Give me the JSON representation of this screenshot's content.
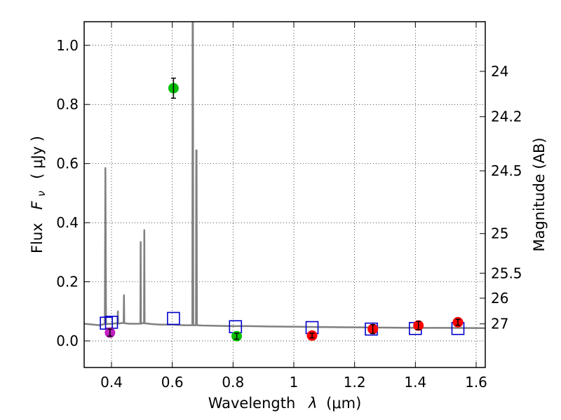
{
  "chart_data": {
    "type": "scatter",
    "title": "",
    "xlabel_text": "Wavelength",
    "xlabel_symbol": "λ",
    "xlabel_unit": "(μm)",
    "ylabel_text": "Flux",
    "ylabel_symbol": "F",
    "ylabel_sub": "ν",
    "ylabel_unit": "( μJy )",
    "y2label": "Magnitude (AB)",
    "xlim": [
      0.31,
      1.63
    ],
    "ylim": [
      -0.09,
      1.08
    ],
    "grid": true,
    "x_ticks": [
      0.4,
      0.6,
      0.8,
      1.0,
      1.2,
      1.4,
      1.6
    ],
    "x_tick_labels": [
      "0.4",
      "0.6",
      "0.8",
      "1",
      "1.2",
      "1.4",
      "1.6"
    ],
    "y_ticks": [
      0.0,
      0.2,
      0.4,
      0.6,
      0.8,
      1.0
    ],
    "y_tick_labels": [
      "0.0",
      "0.2",
      "0.4",
      "0.6",
      "0.8",
      "1.0"
    ],
    "y2_ticks": [
      24,
      24.2,
      24.5,
      25,
      25.5,
      26,
      27
    ],
    "y2_tick_labels": [
      "24",
      "24.2",
      "24.5",
      "25",
      "25.5",
      "26",
      "27"
    ],
    "colors": {
      "model": "#808080",
      "model_points": "#0000cc",
      "green": "#00c000",
      "magenta": "#c020c0",
      "red": "#ff0000",
      "errorbar": "#000000"
    },
    "model_spectrum": [
      [
        0.31,
        0.058
      ],
      [
        0.36,
        0.053
      ],
      [
        0.378,
        0.057
      ],
      [
        0.38,
        0.585
      ],
      [
        0.382,
        0.057
      ],
      [
        0.4,
        0.058
      ],
      [
        0.42,
        0.06
      ],
      [
        0.421,
        0.1
      ],
      [
        0.422,
        0.058
      ],
      [
        0.43,
        0.06
      ],
      [
        0.44,
        0.061
      ],
      [
        0.441,
        0.155
      ],
      [
        0.442,
        0.06
      ],
      [
        0.46,
        0.058
      ],
      [
        0.48,
        0.058
      ],
      [
        0.495,
        0.058
      ],
      [
        0.496,
        0.335
      ],
      [
        0.497,
        0.058
      ],
      [
        0.5,
        0.06
      ],
      [
        0.507,
        0.06
      ],
      [
        0.508,
        0.375
      ],
      [
        0.509,
        0.06
      ],
      [
        0.53,
        0.057
      ],
      [
        0.56,
        0.055
      ],
      [
        0.6,
        0.055
      ],
      [
        0.64,
        0.053
      ],
      [
        0.666,
        0.053
      ],
      [
        0.667,
        1.08
      ],
      [
        0.668,
        1.08
      ],
      [
        0.669,
        0.053
      ],
      [
        0.672,
        0.053
      ],
      [
        0.678,
        0.053
      ],
      [
        0.679,
        0.645
      ],
      [
        0.68,
        0.645
      ],
      [
        0.681,
        0.053
      ],
      [
        0.7,
        0.052
      ],
      [
        0.75,
        0.051
      ],
      [
        0.8,
        0.05
      ],
      [
        0.85,
        0.05
      ],
      [
        0.9,
        0.049
      ],
      [
        1.0,
        0.048
      ],
      [
        1.1,
        0.047
      ],
      [
        1.2,
        0.046
      ],
      [
        1.3,
        0.045
      ],
      [
        1.4,
        0.044
      ],
      [
        1.5,
        0.044
      ],
      [
        1.63,
        0.043
      ]
    ],
    "model_photometry": [
      {
        "x": 0.383,
        "y": 0.06
      },
      {
        "x": 0.4,
        "y": 0.063
      },
      {
        "x": 0.604,
        "y": 0.076
      },
      {
        "x": 0.808,
        "y": 0.048
      },
      {
        "x": 1.06,
        "y": 0.045
      },
      {
        "x": 1.255,
        "y": 0.04
      },
      {
        "x": 1.4,
        "y": 0.042
      },
      {
        "x": 1.54,
        "y": 0.042
      }
    ],
    "observed": [
      {
        "x": 0.395,
        "y": 0.028,
        "err": 0.012,
        "color": "magenta"
      },
      {
        "x": 0.604,
        "y": 0.855,
        "err": 0.034,
        "color": "green"
      },
      {
        "x": 0.812,
        "y": 0.016,
        "err": 0.01,
        "color": "green"
      },
      {
        "x": 1.06,
        "y": 0.018,
        "err": 0.008,
        "color": "red"
      },
      {
        "x": 1.26,
        "y": 0.04,
        "err": 0.015,
        "color": "red"
      },
      {
        "x": 1.41,
        "y": 0.052,
        "err": 0.014,
        "color": "red"
      },
      {
        "x": 1.54,
        "y": 0.063,
        "err": 0.01,
        "color": "red"
      }
    ]
  }
}
